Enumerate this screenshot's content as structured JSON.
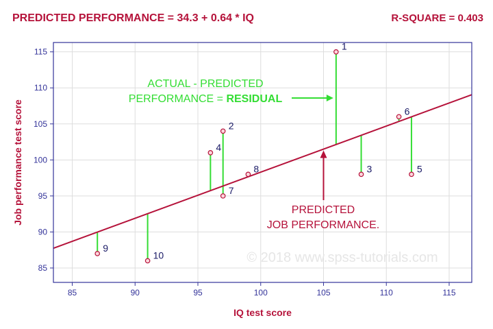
{
  "header": {
    "title": "PREDICTED PERFORMANCE = 34.3 + 0.64 * IQ",
    "rsquare": "R-SQUARE = 0.403"
  },
  "watermark": "© 2018 www.spss-tutorials.com",
  "annotations": {
    "residual_line1": "ACTUAL - PREDICTED",
    "residual_line2_prefix": "PERFORMANCE = ",
    "residual_line2_bold": "RESIDUAL",
    "predicted_line1": "PREDICTED",
    "predicted_line2": "JOB PERFORMANCE."
  },
  "colors": {
    "accent": "#b5123a",
    "residual": "#33dd33",
    "frame": "#333399",
    "grid": "#dddddd"
  },
  "chart_data": {
    "type": "scatter",
    "xlabel": "IQ test score",
    "ylabel": "Job performance test score",
    "xlim": [
      83.5,
      116.8
    ],
    "ylim": [
      83,
      116.3
    ],
    "xticks": [
      85,
      90,
      95,
      100,
      105,
      110,
      115
    ],
    "yticks": [
      85,
      90,
      95,
      100,
      105,
      110,
      115
    ],
    "grid": true,
    "regression": {
      "intercept": 34.3,
      "slope": 0.64
    },
    "points": [
      {
        "id": "1",
        "x": 106,
        "y": 115
      },
      {
        "id": "2",
        "x": 97,
        "y": 104
      },
      {
        "id": "3",
        "x": 108,
        "y": 98
      },
      {
        "id": "4",
        "x": 96,
        "y": 101
      },
      {
        "id": "5",
        "x": 112,
        "y": 98
      },
      {
        "id": "6",
        "x": 111,
        "y": 106
      },
      {
        "id": "7",
        "x": 97,
        "y": 95
      },
      {
        "id": "8",
        "x": 99,
        "y": 98
      },
      {
        "id": "9",
        "x": 87,
        "y": 87
      },
      {
        "id": "10",
        "x": 91,
        "y": 86
      }
    ]
  }
}
